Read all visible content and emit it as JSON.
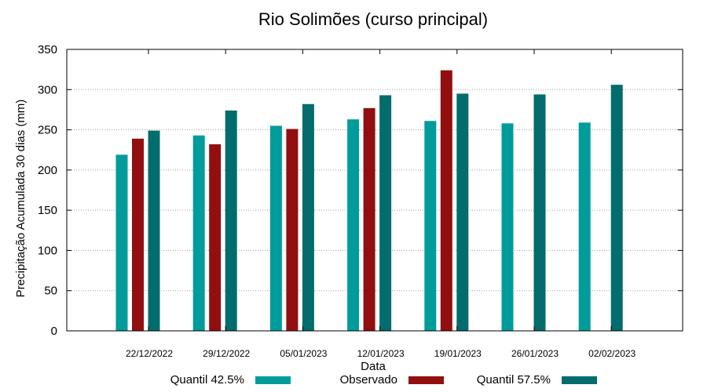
{
  "chart_data": {
    "type": "bar",
    "title": "Rio Solimões (curso principal)",
    "xlabel": "Data",
    "ylabel": "Precipitação Acumulada 30 dias (mm)",
    "ylim": [
      0,
      350
    ],
    "yticks": [
      0,
      50,
      100,
      150,
      200,
      250,
      300,
      350
    ],
    "grid": true,
    "legend_position": "bottom",
    "categories": [
      "22/12/2022",
      "29/12/2022",
      "05/01/2023",
      "12/01/2023",
      "19/01/2023",
      "26/01/2023",
      "02/02/2023"
    ],
    "series": [
      {
        "name": "Quantil 42.5%",
        "color": "#009c9c",
        "values": [
          219,
          243,
          255,
          263,
          261,
          258,
          259
        ]
      },
      {
        "name": "Observado",
        "color": "#920f0f",
        "values": [
          239,
          232,
          251,
          277,
          324,
          null,
          null
        ]
      },
      {
        "name": "Quantil 57.5%",
        "color": "#036c6c",
        "values": [
          249,
          274,
          282,
          293,
          295,
          294,
          306
        ]
      }
    ]
  }
}
